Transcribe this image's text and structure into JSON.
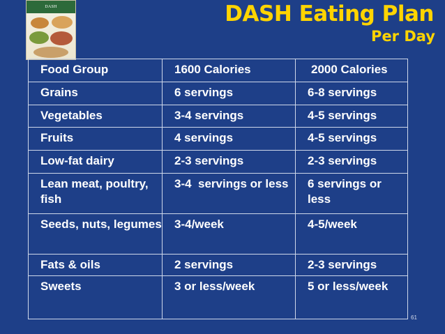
{
  "slide": {
    "title": "DASH Eating Plan",
    "subtitle": "Per Day",
    "page_number": "61",
    "book_cover_text": "DASH"
  },
  "table": {
    "headers": [
      "Food Group",
      "1600 Calories",
      "2000 Calories"
    ],
    "rows": [
      [
        "Grains",
        "6 servings",
        "6-8 servings"
      ],
      [
        "Vegetables",
        "3-4 servings",
        "4-5 servings"
      ],
      [
        "Fruits",
        "4 servings",
        "4-5 servings"
      ],
      [
        "Low-fat dairy",
        "2-3 servings",
        "2-3 servings"
      ],
      [
        "Lean meat, poultry, fish",
        "3-4  servings or less",
        "6 servings or less"
      ],
      [
        "Seeds, nuts, legumes",
        "3-4/week",
        "4-5/week"
      ],
      [
        "Fats & oils",
        "2 servings",
        "2-3 servings"
      ],
      [
        "Sweets",
        "3 or less/week",
        "5 or less/week"
      ]
    ]
  },
  "colors": {
    "background": "#1e3f88",
    "title": "#ffd400",
    "text": "#ffffff"
  }
}
